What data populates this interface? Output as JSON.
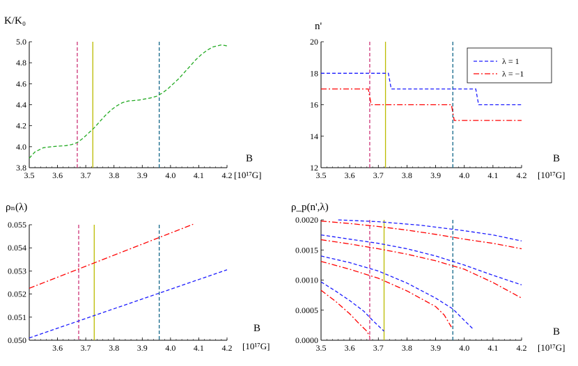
{
  "chart_data": [
    {
      "type": "line",
      "ylabel": "K/K₀",
      "xlabel": "B",
      "xunit": "[10¹⁷G]",
      "xlim": [
        3.5,
        4.2
      ],
      "ylim": [
        3.8,
        5.0
      ],
      "xticks": [
        "3.5",
        "3.6",
        "3.7",
        "3.8",
        "3.9",
        "4.0",
        "4.1",
        "4.2"
      ],
      "yticks": [
        "3.8",
        "4.0",
        "4.2",
        "4.4",
        "4.6",
        "4.8",
        "5.0"
      ],
      "series": [
        {
          "color": "#22aa22",
          "dash": "dashed",
          "x": [
            3.5,
            3.52,
            3.55,
            3.58,
            3.6,
            3.63,
            3.65,
            3.67,
            3.69,
            3.71,
            3.73,
            3.75,
            3.77,
            3.79,
            3.81,
            3.83,
            3.85,
            3.87,
            3.89,
            3.91,
            3.93,
            3.95,
            3.97,
            3.99,
            4.01,
            4.03,
            4.05,
            4.07,
            4.09,
            4.11,
            4.13,
            4.15,
            4.18,
            4.2
          ],
          "y": [
            3.89,
            3.95,
            3.99,
            4.0,
            4.005,
            4.01,
            4.02,
            4.04,
            4.08,
            4.13,
            4.18,
            4.24,
            4.3,
            4.35,
            4.39,
            4.42,
            4.435,
            4.44,
            4.445,
            4.455,
            4.465,
            4.48,
            4.51,
            4.55,
            4.6,
            4.65,
            4.71,
            4.77,
            4.83,
            4.88,
            4.92,
            4.95,
            4.97,
            4.96
          ]
        }
      ],
      "vlines": [
        {
          "x": 3.67,
          "color": "#cc3377",
          "dash": "dashed"
        },
        {
          "x": 3.725,
          "color": "#bbbb00",
          "dash": "solid"
        },
        {
          "x": 3.96,
          "color": "#116688",
          "dash": "dashed"
        }
      ]
    },
    {
      "type": "line",
      "ylabel": "n'",
      "xlabel": "B",
      "xunit": "[10¹⁷G]",
      "xlim": [
        3.5,
        4.2
      ],
      "ylim": [
        12,
        20
      ],
      "xticks": [
        "3.5",
        "3.6",
        "3.7",
        "3.8",
        "3.9",
        "4.0",
        "4.1",
        "4.2"
      ],
      "yticks": [
        "12",
        "14",
        "16",
        "18",
        "20"
      ],
      "legend": {
        "placement": "top-right",
        "entries": [
          "λ = 1",
          "λ = −1"
        ]
      },
      "series": [
        {
          "name": "λ = 1",
          "color": "#1a1aff",
          "dash": "dashed",
          "x": [
            3.5,
            3.735,
            3.745,
            4.04,
            4.05,
            4.2
          ],
          "y": [
            18,
            18,
            17,
            17,
            16,
            16
          ]
        },
        {
          "name": "λ = −1",
          "color": "#ff0000",
          "dash": "dashdot",
          "x": [
            3.5,
            3.665,
            3.675,
            3.955,
            3.965,
            4.2
          ],
          "y": [
            17,
            17,
            16,
            16,
            15,
            15
          ]
        }
      ],
      "vlines": [
        {
          "x": 3.67,
          "color": "#cc3377",
          "dash": "dashed"
        },
        {
          "x": 3.725,
          "color": "#bbbb00",
          "dash": "solid"
        },
        {
          "x": 3.96,
          "color": "#116688",
          "dash": "dashed"
        }
      ]
    },
    {
      "type": "line",
      "ylabel": "ρₙ(λ)",
      "xlabel": "B",
      "xunit": "[10¹⁷G]",
      "xlim": [
        3.5,
        4.2
      ],
      "ylim": [
        0.05,
        0.055
      ],
      "xticks": [
        "3.6",
        "3.7",
        "3.8",
        "3.9",
        "4.0",
        "4.1",
        "4.2"
      ],
      "yticks": [
        "0.050",
        "0.051",
        "0.052",
        "0.053",
        "0.054",
        "0.055"
      ],
      "series": [
        {
          "color": "#1a1aff",
          "dash": "dashed",
          "x": [
            3.5,
            4.2
          ],
          "y": [
            0.0501,
            0.05305
          ]
        },
        {
          "color": "#ff0000",
          "dash": "dashdot",
          "x": [
            3.5,
            4.08
          ],
          "y": [
            0.05225,
            0.05502
          ]
        }
      ],
      "vlines": [
        {
          "x": 3.675,
          "color": "#cc3377",
          "dash": "dashed"
        },
        {
          "x": 3.73,
          "color": "#bbbb00",
          "dash": "solid"
        },
        {
          "x": 3.96,
          "color": "#116688",
          "dash": "dashed"
        }
      ]
    },
    {
      "type": "line",
      "ylabel": "ρ_p(n',λ)",
      "xlabel": "B",
      "xunit": "[10¹⁷G]",
      "xlim": [
        3.5,
        4.2
      ],
      "ylim": [
        0,
        0.002
      ],
      "xticks": [
        "3.5",
        "3.6",
        "3.7",
        "3.8",
        "3.9",
        "4.0",
        "4.1",
        "4.2"
      ],
      "yticks": [
        "0.0000",
        "0.0005",
        "0.0010",
        "0.0015",
        "0.0020"
      ],
      "series": [
        {
          "color": "#1a1aff",
          "dash": "dashed",
          "x": [
            3.56,
            3.7,
            3.85,
            4.0,
            4.1,
            4.2
          ],
          "y": [
            0.002,
            0.00197,
            0.00191,
            0.00182,
            0.00175,
            0.00165
          ]
        },
        {
          "color": "#1a1aff",
          "dash": "dashed",
          "x": [
            3.5,
            3.6,
            3.7,
            3.8,
            3.9,
            4.0,
            4.1,
            4.2
          ],
          "y": [
            0.00175,
            0.00168,
            0.00161,
            0.00152,
            0.0014,
            0.00125,
            0.00108,
            0.00092
          ]
        },
        {
          "color": "#1a1aff",
          "dash": "dashed",
          "x": [
            3.5,
            3.6,
            3.7,
            3.8,
            3.9,
            3.96,
            4.0,
            4.03
          ],
          "y": [
            0.0014,
            0.00129,
            0.00115,
            0.00095,
            0.0007,
            0.00052,
            0.00033,
            0.00019
          ]
        },
        {
          "color": "#1a1aff",
          "dash": "dashed",
          "x": [
            3.5,
            3.55,
            3.6,
            3.65,
            3.68,
            3.72
          ],
          "y": [
            0.00097,
            0.00082,
            0.00066,
            0.00048,
            0.00033,
            0.00015
          ]
        },
        {
          "color": "#ff0000",
          "dash": "dashdot",
          "x": [
            3.5,
            3.6,
            3.7,
            3.8,
            3.9,
            4.0,
            4.1,
            4.2
          ],
          "y": [
            0.00198,
            0.00194,
            0.00189,
            0.00183,
            0.00176,
            0.00168,
            0.00161,
            0.00152
          ]
        },
        {
          "color": "#ff0000",
          "dash": "dashdot",
          "x": [
            3.5,
            3.6,
            3.7,
            3.8,
            3.9,
            4.0,
            4.1,
            4.2
          ],
          "y": [
            0.00167,
            0.0016,
            0.00152,
            0.00143,
            0.00132,
            0.00118,
            0.00096,
            0.0007
          ]
        },
        {
          "color": "#ff0000",
          "dash": "dashdot",
          "x": [
            3.5,
            3.6,
            3.7,
            3.8,
            3.9,
            3.93,
            3.955
          ],
          "y": [
            0.00131,
            0.00118,
            0.00103,
            0.00082,
            0.00056,
            0.00042,
            0.00022
          ]
        },
        {
          "color": "#ff0000",
          "dash": "dashdot",
          "x": [
            3.5,
            3.55,
            3.6,
            3.63,
            3.66,
            3.67
          ],
          "y": [
            0.00083,
            0.00065,
            0.00044,
            0.00029,
            0.00015,
            6e-05
          ]
        }
      ],
      "vlines": [
        {
          "x": 3.67,
          "color": "#cc3377",
          "dash": "dashed"
        },
        {
          "x": 3.72,
          "color": "#bbbb00",
          "dash": "solid"
        },
        {
          "x": 3.96,
          "color": "#116688",
          "dash": "dashed"
        }
      ]
    }
  ]
}
